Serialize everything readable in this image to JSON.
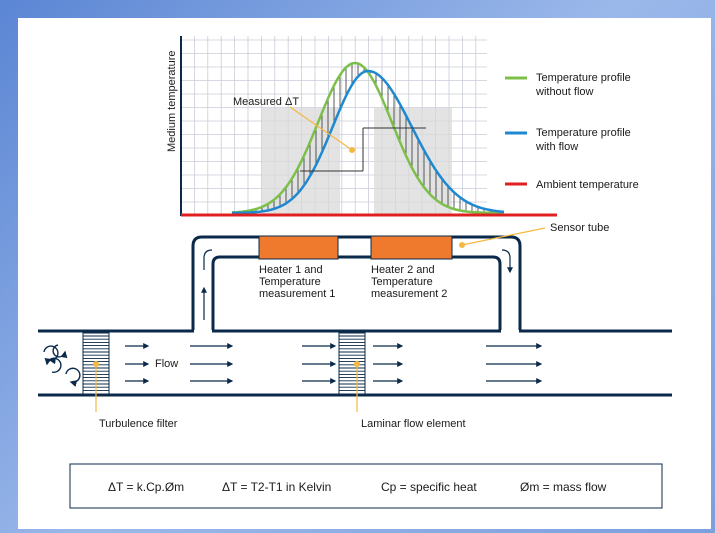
{
  "colors": {
    "navy": "#0b2a4a",
    "profile_no_flow": "#7cc04a",
    "profile_with_flow": "#1e88d0",
    "ambient": "#e02020",
    "heater": "#ef7a2e",
    "marker": "#f5b841",
    "grid": "#c9ccd8"
  },
  "chart": {
    "y_axis_label": "Medium temperature",
    "measured_label": "Measured ΔT"
  },
  "legend": {
    "no_flow_line1": "Temperature profile",
    "no_flow_line2": "without flow",
    "with_flow_line1": "Temperature profile",
    "with_flow_line2": "with flow",
    "ambient": "Ambient temperature"
  },
  "labels": {
    "sensor_tube": "Sensor tube",
    "heater1_l1": "Heater 1 and",
    "heater1_l2": "Temperature",
    "heater1_l3": "measurement 1",
    "heater2_l1": "Heater 2 and",
    "heater2_l2": "Temperature",
    "heater2_l3": "measurement 2",
    "flow": "Flow",
    "turbulence_filter": "Turbulence filter",
    "laminar_flow_element": "Laminar flow element"
  },
  "formula": {
    "f1": "ΔT = k.Cp.Øm",
    "f2": "ΔT = T2-T1 in Kelvin",
    "f3": "Cp = specific heat",
    "f4": "Øm = mass flow"
  }
}
